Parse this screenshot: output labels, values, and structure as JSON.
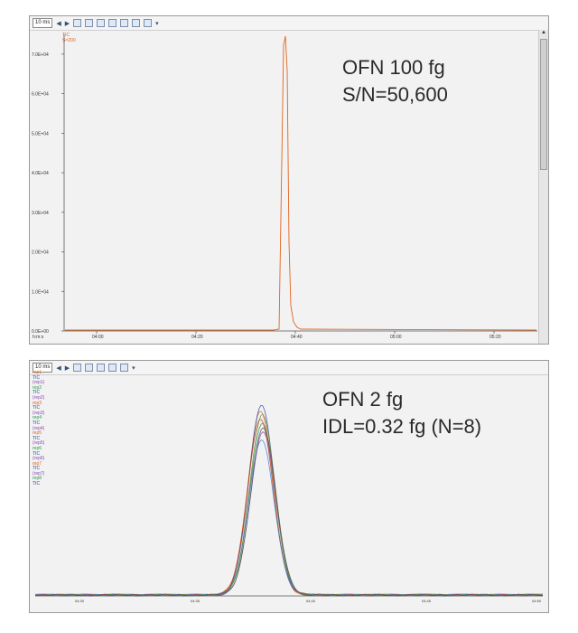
{
  "panel1": {
    "toolbar": {
      "select": "10 ms"
    },
    "legend": [
      {
        "label": "TIC",
        "color": "#e2631d"
      },
      {
        "label": "S=200",
        "color": "#e2631d"
      }
    ],
    "annotation": [
      "OFN 100 fg",
      "S/N=50,600"
    ],
    "yticks": [
      "0.0E+00",
      "1.0E+04",
      "2.0E+04",
      "3.0E+04",
      "4.0E+04",
      "5.0E+04",
      "6.0E+04",
      "7.0E+04"
    ],
    "xticks": [
      "04:00",
      "04:20",
      "04:40",
      "05:00",
      "05:20"
    ],
    "x_unit": "h:m:s",
    "trace_color": "#e2631d"
  },
  "panel2": {
    "toolbar": {
      "select": "10 ms"
    },
    "legend": [
      {
        "label": "rep1",
        "color": "#e2631d"
      },
      {
        "label": "TIC",
        "color": "#1f4aa8"
      },
      {
        "label": "(rep1)",
        "color": "#8a4ab0"
      },
      {
        "label": "rep2",
        "color": "#2a9a4a"
      },
      {
        "label": "TIC",
        "color": "#1f4aa8"
      },
      {
        "label": "(rep2)",
        "color": "#8a4ab0"
      },
      {
        "label": "rep3",
        "color": "#e2631d"
      },
      {
        "label": "TIC",
        "color": "#1f4aa8"
      },
      {
        "label": "(rep3)",
        "color": "#8a4ab0"
      },
      {
        "label": "rep4",
        "color": "#2a9a4a"
      },
      {
        "label": "TIC",
        "color": "#1f4aa8"
      },
      {
        "label": "(rep4)",
        "color": "#8a4ab0"
      },
      {
        "label": "rep5",
        "color": "#e2631d"
      },
      {
        "label": "TIC",
        "color": "#1f4aa8"
      },
      {
        "label": "(rep5)",
        "color": "#8a4ab0"
      },
      {
        "label": "rep6",
        "color": "#2a9a4a"
      },
      {
        "label": "TIC",
        "color": "#1f4aa8"
      },
      {
        "label": "(rep6)",
        "color": "#8a4ab0"
      },
      {
        "label": "rep7",
        "color": "#e2631d"
      },
      {
        "label": "TIC",
        "color": "#1f4aa8"
      },
      {
        "label": "(rep7)",
        "color": "#8a4ab0"
      },
      {
        "label": "rep8",
        "color": "#2a9a4a"
      },
      {
        "label": "TIC",
        "color": "#1f4aa8"
      }
    ],
    "annotation": [
      "OFN 2 fg",
      "IDL=0.32 fg (N=8)"
    ],
    "xticks": [
      "04:30",
      "04:35",
      "04:40",
      "04:45",
      "04:50"
    ],
    "trace_colors": [
      "#e2631d",
      "#1f4aa8",
      "#2a9a4a",
      "#8a4ab0",
      "#c0392b",
      "#3b7dd8",
      "#7a8a2a",
      "#555555"
    ],
    "peak_scales": [
      0.97,
      1.0,
      0.9,
      0.86,
      0.93,
      0.82,
      0.95,
      0.88
    ]
  },
  "chart_data": [
    {
      "type": "line",
      "series": [
        {
          "name": "TIC",
          "x": [
            "04:00",
            "04:20",
            "04:36",
            "04:37",
            "04:38",
            "04:40",
            "05:00",
            "05:20"
          ],
          "values": [
            0,
            0,
            0,
            72000,
            8000,
            0,
            0,
            0
          ]
        }
      ],
      "ylim": [
        0,
        75000
      ],
      "grid": false
    },
    {
      "type": "line",
      "series": [
        {
          "name": "rep1",
          "x": [
            "04:30",
            "04:36",
            "04:37",
            "04:38",
            "04:39",
            "04:45",
            "04:50"
          ],
          "values": [
            0.05,
            0.05,
            0.6,
            1.0,
            0.3,
            0.05,
            0.05
          ]
        }
      ],
      "grid": false
    }
  ]
}
